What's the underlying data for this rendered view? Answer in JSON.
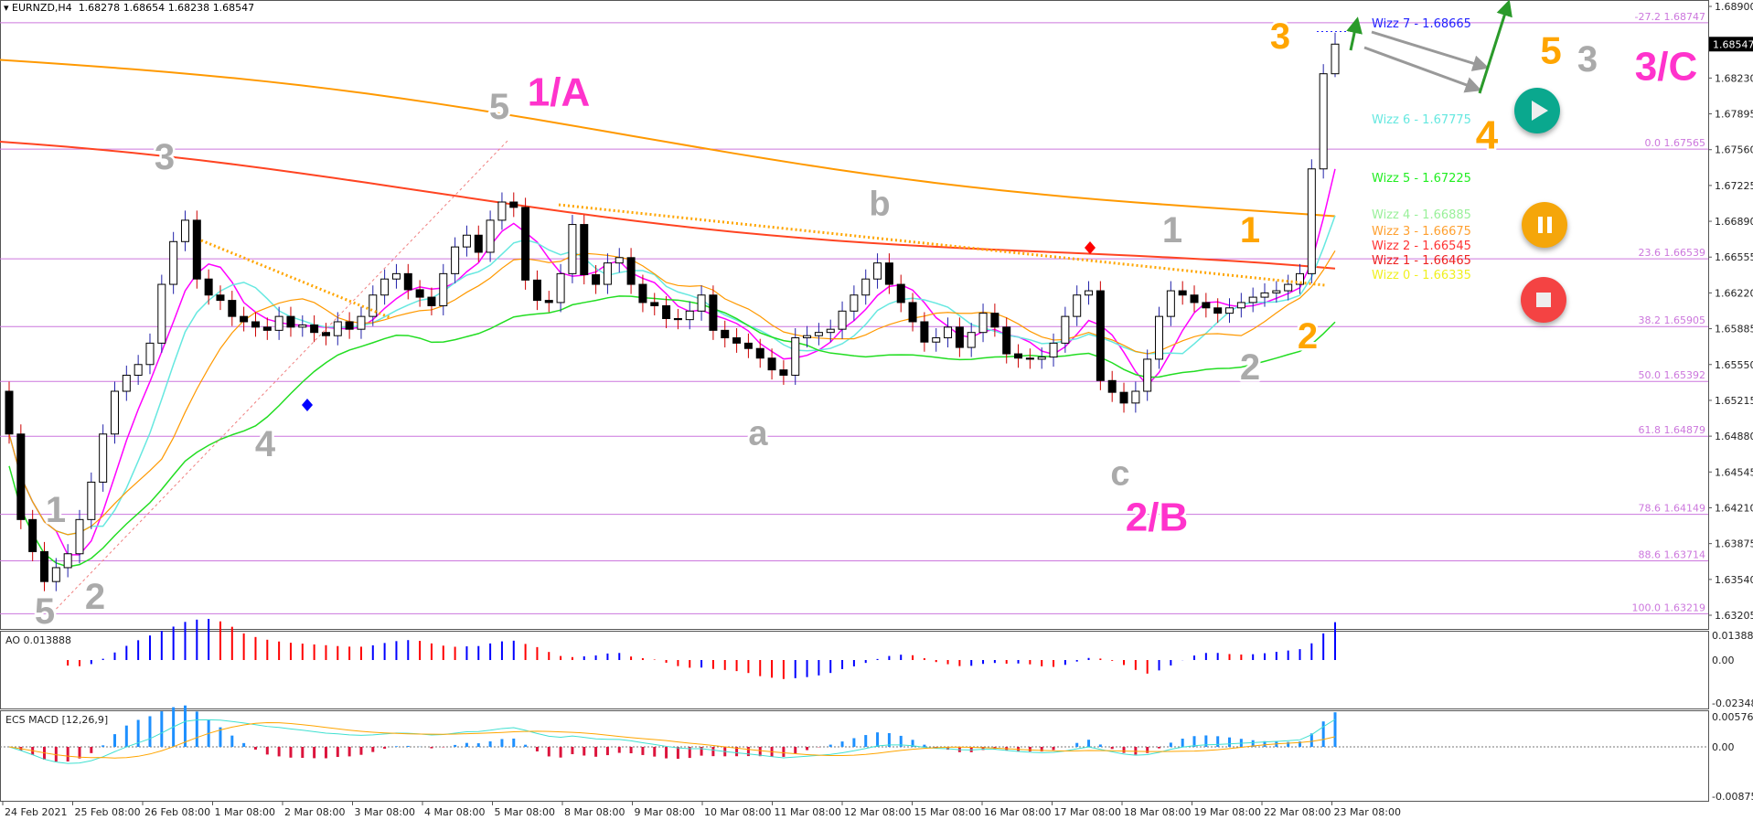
{
  "header": {
    "symbol": "EURNZD,H4",
    "open": "1.68278",
    "high": "1.68654",
    "low": "1.68238",
    "close": "1.68547"
  },
  "current_price": "1.68547",
  "colors": {
    "bull": "#ffffff",
    "bear": "#000000",
    "fib": "#cc77dd",
    "ao_up": "#0000ff",
    "ao_down": "#ff0000",
    "macd_up": "#1e90ff",
    "macd_down": "#dc143c",
    "signal": "#ffa500",
    "macd_line": "#40e0d0"
  },
  "chart_data": {
    "type": "candlestick",
    "ylim": [
      1.632,
      1.69
    ],
    "closes": [
      1.649,
      1.641,
      1.638,
      1.6352,
      1.6365,
      1.6378,
      1.641,
      1.6445,
      1.649,
      1.653,
      1.6545,
      1.6555,
      1.6575,
      1.663,
      1.667,
      1.669,
      1.6635,
      1.662,
      1.6615,
      1.66,
      1.6595,
      1.659,
      1.6587,
      1.66,
      1.659,
      1.6592,
      1.6585,
      1.6582,
      1.6595,
      1.6588,
      1.66,
      1.662,
      1.6635,
      1.664,
      1.6625,
      1.6618,
      1.661,
      1.664,
      1.6665,
      1.6676,
      1.666,
      1.669,
      1.6707,
      1.6702,
      1.6634,
      1.6615,
      1.6613,
      1.664,
      1.6686,
      1.6639,
      1.663,
      1.665,
      1.6655,
      1.663,
      1.6613,
      1.661,
      1.6598,
      1.6597,
      1.6605,
      1.662,
      1.6587,
      1.658,
      1.6575,
      1.657,
      1.6561,
      1.655,
      1.6545,
      1.658,
      1.6582,
      1.6585,
      1.6588,
      1.6605,
      1.662,
      1.6635,
      1.665,
      1.663,
      1.6613,
      1.6595,
      1.6576,
      1.658,
      1.659,
      1.6571,
      1.6585,
      1.6603,
      1.659,
      1.6565,
      1.6561,
      1.656,
      1.6562,
      1.6575,
      1.66,
      1.662,
      1.6624,
      1.654,
      1.6529,
      1.6519,
      1.653,
      1.656,
      1.66,
      1.6624,
      1.662,
      1.6613,
      1.6608,
      1.6603,
      1.6608,
      1.6613,
      1.6618,
      1.6622,
      1.6624,
      1.663,
      1.664,
      1.6738,
      1.6827,
      1.68547
    ],
    "price_ticks": [
      "1.68900",
      "1.68230",
      "1.67895",
      "1.67560",
      "1.67225",
      "1.66890",
      "1.66555",
      "1.66220",
      "1.65885",
      "1.65550",
      "1.65215",
      "1.64880",
      "1.64545",
      "1.64210",
      "1.63875",
      "1.63540",
      "1.63205"
    ],
    "time_ticks": [
      "24 Feb 2021",
      "25 Feb 08:00",
      "26 Feb 08:00",
      "1 Mar 08:00",
      "2 Mar 08:00",
      "3 Mar 08:00",
      "4 Mar 08:00",
      "5 Mar 08:00",
      "8 Mar 08:00",
      "9 Mar 08:00",
      "10 Mar 08:00",
      "11 Mar 08:00",
      "12 Mar 08:00",
      "15 Mar 08:00",
      "16 Mar 08:00",
      "17 Mar 08:00",
      "18 Mar 08:00",
      "19 Mar 08:00",
      "22 Mar 08:00",
      "23 Mar 08:00"
    ],
    "long_mas": [
      {
        "color": "#ff9900",
        "from": 1.684,
        "to": 1.669
      },
      {
        "color": "#ff4422",
        "from": 1.6755,
        "to": 1.6635
      }
    ]
  },
  "fib_levels": [
    {
      "label": "-27.2 1.68747",
      "price": 1.68747
    },
    {
      "label": "0.0 1.67565",
      "price": 1.67565
    },
    {
      "label": "23.6 1.66539",
      "price": 1.66539
    },
    {
      "label": "38.2 1.65905",
      "price": 1.65905
    },
    {
      "label": "50.0 1.65392",
      "price": 1.65392
    },
    {
      "label": "61.8 1.64879",
      "price": 1.64879
    },
    {
      "label": "78.6 1.64149",
      "price": 1.64149
    },
    {
      "label": "88.6 1.63714",
      "price": 1.63714
    },
    {
      "label": "100.0 1.63219",
      "price": 1.63219
    }
  ],
  "wizz": [
    {
      "label": "Wizz 7 - 1.68665",
      "color": "#2222ff"
    },
    {
      "label": "Wizz 6 - 1.67775",
      "color": "#66e8e0"
    },
    {
      "label": "Wizz 5 - 1.67225",
      "color": "#22ee22"
    },
    {
      "label": "Wizz 4 - 1.66885",
      "color": "#99f099"
    },
    {
      "label": "Wizz 3 - 1.66675",
      "color": "#ffa030"
    },
    {
      "label": "Wizz 2 - 1.66545",
      "color": "#ff3333"
    },
    {
      "label": "Wizz 1 - 1.66465",
      "color": "#ee2222"
    },
    {
      "label": "Wizz 0 - 1.66335",
      "color": "#f0f020"
    }
  ],
  "wave_labels": [
    {
      "text": "5",
      "color": "#aaaaaa"
    },
    {
      "text": "1/A",
      "color": "#ff33cc"
    },
    {
      "text": "3",
      "color": "#aaaaaa"
    },
    {
      "text": "4",
      "color": "#aaaaaa"
    },
    {
      "text": "1",
      "color": "#aaaaaa"
    },
    {
      "text": "2",
      "color": "#aaaaaa"
    },
    {
      "text": "5",
      "color": "#aaaaaa"
    },
    {
      "text": "b",
      "color": "#aaaaaa"
    },
    {
      "text": "a",
      "color": "#aaaaaa"
    },
    {
      "text": "c",
      "color": "#aaaaaa"
    },
    {
      "text": "2/B",
      "color": "#ff33cc"
    },
    {
      "text": "1",
      "color": "#aaaaaa"
    },
    {
      "text": "1",
      "color": "#ffa500"
    },
    {
      "text": "2",
      "color": "#aaaaaa"
    },
    {
      "text": "2",
      "color": "#ffa500"
    },
    {
      "text": "3",
      "color": "#ffa500"
    },
    {
      "text": "4",
      "color": "#ffa500"
    },
    {
      "text": "5",
      "color": "#ffa500"
    },
    {
      "text": "3",
      "color": "#aaaaaa"
    },
    {
      "text": "3/C",
      "color": "#ff33cc"
    }
  ],
  "ao": {
    "label": "AO 0.013888",
    "max": "0.013888",
    "zero": "0.00",
    "min": "-0.02348"
  },
  "macd": {
    "label": "ECS MACD [12,26,9]",
    "max": "0.0057657",
    "zero": "0.00",
    "min": "-0.008751"
  },
  "buttons": {
    "play": "play-icon",
    "pause": "pause-icon",
    "stop": "stop-icon"
  }
}
